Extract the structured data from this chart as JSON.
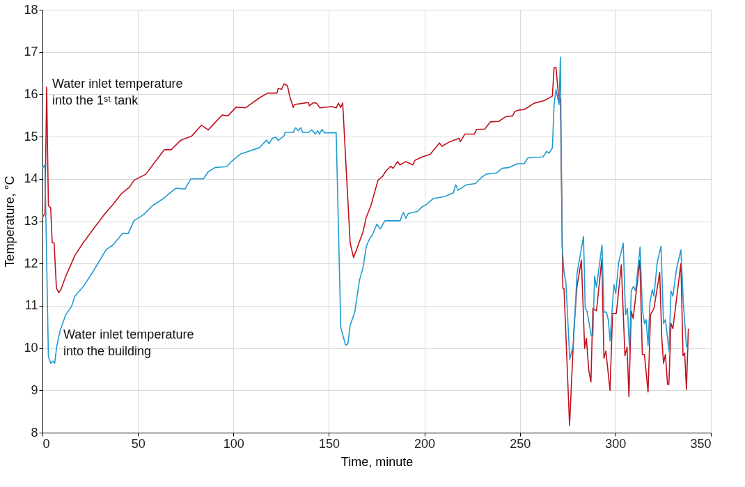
{
  "chart_data": {
    "type": "line",
    "xlabel": "Time, minute",
    "ylabel": "Temperature, °C",
    "xlim": [
      0,
      350
    ],
    "xticks": [
      0,
      50,
      100,
      150,
      200,
      250,
      300,
      350
    ],
    "ylim": [
      8,
      18
    ],
    "yticks": [
      8,
      9,
      10,
      11,
      12,
      13,
      14,
      15,
      16,
      17,
      18
    ],
    "grid": true,
    "legend": false,
    "marker": "none",
    "line_style": "solid",
    "series": [
      {
        "name": "Water inlet temperature into the 1ˢᵗ tank",
        "color": "#c0111f",
        "x": [
          0.1,
          1.3,
          2.2,
          3.1,
          4.3,
          5.1,
          6.1,
          7.3,
          8.5,
          9.7,
          12.2,
          17.0,
          21.3,
          26.7,
          32.2,
          37.0,
          41.3,
          45.6,
          48.0,
          54.1,
          57.7,
          63.8,
          67.4,
          72.3,
          78.3,
          83.2,
          86.8,
          94.1,
          97.1,
          101.4,
          106.2,
          113.7,
          118.0,
          122.8,
          123.4,
          125.2,
          126.5,
          128.3,
          129.5,
          131.3,
          131.9,
          136.8,
          139.2,
          139.8,
          141.7,
          143.5,
          145.3,
          151.4,
          153.8,
          155.0,
          156.2,
          157.2,
          161.1,
          162.9,
          164.7,
          167.8,
          169.6,
          172.0,
          175.7,
          178.1,
          179.9,
          182.4,
          183.6,
          186.0,
          187.2,
          190.3,
          193.9,
          195.1,
          198.8,
          203.0,
          207.9,
          209.1,
          213.3,
          218.2,
          218.8,
          221.2,
          226.1,
          227.3,
          231.6,
          234.6,
          238.9,
          242.5,
          246.2,
          247.4,
          249.8,
          252.3,
          257.5,
          262.7,
          267.0,
          267.9,
          268.9,
          270.5,
          271.2,
          272.5,
          273.1,
          276.0,
          278.3,
          279.9,
          282.2,
          283.9,
          284.8,
          286.1,
          287.2,
          288.2,
          290.1,
          292.9,
          294.0,
          295.0,
          297.2,
          298.5,
          300.5,
          303.1,
          305.0,
          306.1,
          307.1,
          308.3,
          309.3,
          312.8,
          314.1,
          315.2,
          317.1,
          318.4,
          320.2,
          323.2,
          324.3,
          325.2,
          326.2,
          327.3,
          328.0,
          329.1,
          330.1,
          334.3,
          335.4,
          336.3,
          337.2,
          338.2
        ],
        "values": [
          13.1,
          13.18,
          16.17,
          13.37,
          13.32,
          12.49,
          12.49,
          11.42,
          11.31,
          11.39,
          11.7,
          12.19,
          12.49,
          12.82,
          13.15,
          13.4,
          13.65,
          13.81,
          13.97,
          14.11,
          14.33,
          14.69,
          14.69,
          14.91,
          15.02,
          15.27,
          15.16,
          15.51,
          15.49,
          15.7,
          15.68,
          15.92,
          16.03,
          16.03,
          16.14,
          16.12,
          16.25,
          16.2,
          15.95,
          15.69,
          15.76,
          15.79,
          15.81,
          15.73,
          15.8,
          15.79,
          15.68,
          15.71,
          15.68,
          15.79,
          15.69,
          15.8,
          12.49,
          12.14,
          12.36,
          12.74,
          13.1,
          13.37,
          13.97,
          14.06,
          14.19,
          14.3,
          14.25,
          14.41,
          14.33,
          14.41,
          14.33,
          14.44,
          14.52,
          14.58,
          14.85,
          14.77,
          14.88,
          14.96,
          14.88,
          15.06,
          15.06,
          15.17,
          15.18,
          15.35,
          15.36,
          15.47,
          15.49,
          15.6,
          15.63,
          15.64,
          15.79,
          15.85,
          15.96,
          16.63,
          16.63,
          15.82,
          15.9,
          11.41,
          11.41,
          8.17,
          10.46,
          11.46,
          12.08,
          9.99,
          10.23,
          9.46,
          9.2,
          10.94,
          10.88,
          12.11,
          9.76,
          9.93,
          9.0,
          10.82,
          10.82,
          11.97,
          9.82,
          10.02,
          8.85,
          10.88,
          10.7,
          12.08,
          9.85,
          9.85,
          8.96,
          10.79,
          10.94,
          11.79,
          10.23,
          9.64,
          9.85,
          9.14,
          9.14,
          10.58,
          10.46,
          12.0,
          9.82,
          9.88,
          9.02,
          10.46
        ]
      },
      {
        "name": "Water inlet temperature into the building",
        "color": "#1f9bd1",
        "x": [
          0.1,
          1.3,
          1.9,
          3.1,
          4.3,
          5.5,
          6.4,
          7.4,
          9.2,
          12.2,
          15.2,
          17.0,
          21.3,
          26.1,
          28.6,
          33.4,
          37.0,
          41.9,
          44.9,
          47.9,
          52.8,
          57.7,
          62.5,
          69.8,
          74.6,
          77.7,
          84.3,
          86.8,
          90.4,
          96.5,
          98.9,
          103.8,
          113.7,
          117.3,
          118.6,
          120.4,
          122.2,
          123.4,
          126.5,
          127.1,
          131.3,
          132.5,
          133.8,
          135.3,
          136.2,
          139.2,
          141.0,
          142.9,
          144.1,
          145.1,
          146.3,
          147.7,
          153.8,
          156.2,
          158.7,
          159.9,
          161.1,
          163.5,
          166.0,
          167.8,
          169.6,
          171.4,
          172.6,
          175.1,
          176.9,
          179.3,
          187.2,
          189.0,
          190.3,
          191.5,
          196.3,
          198.8,
          201.2,
          204.8,
          207.9,
          210.9,
          215.2,
          216.4,
          217.6,
          221.9,
          226.7,
          229.8,
          232.2,
          237.7,
          240.7,
          244.3,
          248.6,
          252.2,
          254.2,
          262.1,
          263.9,
          265.3,
          267.0,
          267.9,
          268.9,
          270.5,
          271.2,
          272.1,
          273.1,
          274.1,
          276.1,
          278.0,
          279.9,
          283.3,
          284.2,
          285.1,
          287.4,
          288.2,
          289.1,
          290.1,
          293.0,
          294.0,
          295.3,
          296.3,
          297.2,
          299.2,
          300.2,
          301.7,
          304.1,
          305.3,
          306.3,
          307.4,
          308.3,
          309.5,
          310.6,
          312.9,
          314.1,
          315.2,
          316.1,
          317.1,
          318.1,
          319.3,
          320.2,
          321.9,
          323.9,
          325.2,
          326.2,
          328.1,
          329.1,
          330.1,
          332.0,
          334.3,
          335.6,
          337.2,
          338.2
        ],
        "values": [
          14.25,
          14.33,
          12.82,
          9.8,
          9.64,
          9.69,
          9.64,
          10.02,
          10.41,
          10.79,
          10.98,
          11.23,
          11.45,
          11.78,
          11.97,
          12.33,
          12.44,
          12.71,
          12.71,
          13.01,
          13.15,
          13.37,
          13.51,
          13.78,
          13.76,
          14.0,
          14.0,
          14.17,
          14.27,
          14.29,
          14.41,
          14.59,
          14.74,
          14.92,
          14.83,
          14.96,
          14.99,
          14.91,
          15.02,
          15.1,
          15.1,
          15.21,
          15.14,
          15.21,
          15.1,
          15.1,
          15.16,
          15.06,
          15.14,
          15.06,
          15.17,
          15.09,
          15.09,
          10.49,
          10.07,
          10.1,
          10.54,
          10.84,
          11.61,
          11.89,
          12.41,
          12.6,
          12.66,
          12.93,
          12.82,
          13.01,
          13.01,
          13.21,
          13.07,
          13.18,
          13.23,
          13.34,
          13.4,
          13.54,
          13.56,
          13.59,
          13.67,
          13.86,
          13.73,
          13.86,
          13.89,
          14.03,
          14.11,
          14.14,
          14.25,
          14.27,
          14.36,
          14.36,
          14.5,
          14.52,
          14.65,
          14.61,
          14.73,
          15.76,
          16.11,
          15.76,
          16.88,
          12.41,
          11.79,
          11.55,
          9.73,
          10.08,
          11.76,
          12.64,
          10.94,
          10.88,
          10.29,
          10.29,
          11.7,
          11.44,
          12.44,
          10.85,
          10.85,
          10.67,
          10.17,
          11.5,
          11.29,
          12.02,
          12.48,
          10.79,
          10.94,
          9.93,
          11.35,
          11.46,
          11.35,
          12.39,
          10.94,
          10.58,
          10.67,
          10.05,
          11.08,
          11.38,
          11.23,
          12.02,
          12.41,
          10.58,
          10.67,
          9.93,
          11.35,
          11.23,
          11.88,
          12.32,
          11.05,
          10.05,
          9.96
        ]
      }
    ]
  }
}
